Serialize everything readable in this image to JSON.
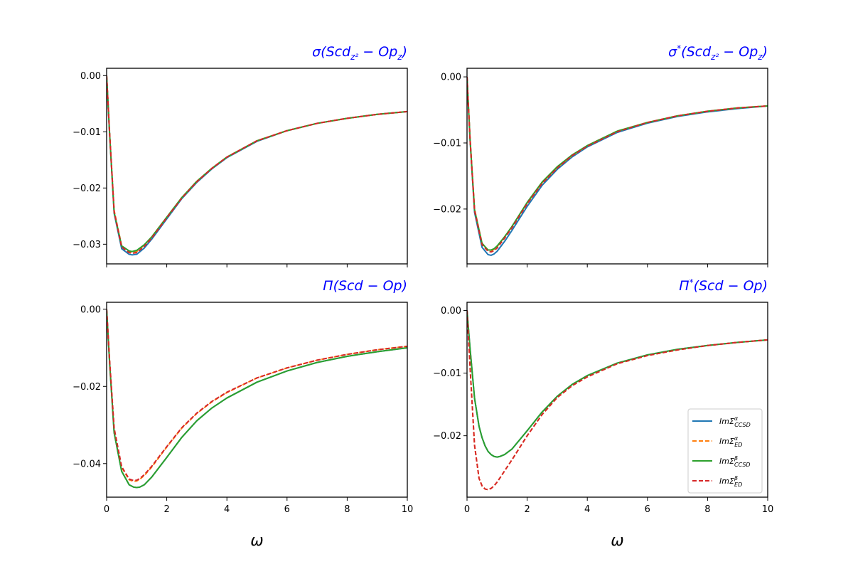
{
  "figure": {
    "title_color": "#0000ff",
    "xlabel": "ω",
    "series_styles": [
      {
        "color": "#1f77b4",
        "dash": "solid"
      },
      {
        "color": "#ff7f0e",
        "dash": "dashed"
      },
      {
        "color": "#2ca02c",
        "dash": "solid"
      },
      {
        "color": "#d62728",
        "dash": "dashed"
      }
    ],
    "legend": {
      "placement": "lower-right of bottom-right panel",
      "entries": [
        {
          "base": "ImΣ",
          "sup": "α",
          "sub": "CCSD"
        },
        {
          "base": "ImΣ",
          "sup": "α",
          "sub": "ED"
        },
        {
          "base": "ImΣ",
          "sup": "β",
          "sub": "CCSD"
        },
        {
          "base": "ImΣ",
          "sup": "β",
          "sub": "ED"
        }
      ]
    }
  },
  "chart_data": [
    {
      "type": "line",
      "title_parts": [
        {
          "t": "σ",
          "s": "n"
        },
        {
          "t": "(",
          "s": "n"
        },
        {
          "t": "Scd",
          "s": "n"
        },
        {
          "t": "z²",
          "s": "sub"
        },
        {
          "t": " − ",
          "s": "n"
        },
        {
          "t": "Op",
          "s": "n"
        },
        {
          "t": "z",
          "s": "sub"
        },
        {
          "t": ")",
          "s": "n"
        }
      ],
      "xlim": [
        0,
        10
      ],
      "ylim": [
        -0.0335,
        0.0013
      ],
      "xticks": [
        0,
        2,
        4,
        6,
        8,
        10
      ],
      "xtick_labels": [
        "0",
        "2",
        "4",
        "6",
        "8",
        "10"
      ],
      "show_xticklabels": false,
      "yticks": [
        0.0,
        -0.01,
        -0.02,
        -0.03
      ],
      "ytick_labels": [
        "0.00",
        "−0.01",
        "−0.02",
        "−0.03"
      ],
      "x": [
        0,
        0.1,
        0.25,
        0.5,
        0.75,
        0.85,
        1.0,
        1.25,
        1.5,
        2,
        2.5,
        3,
        3.5,
        4,
        5,
        6,
        7,
        8,
        9,
        10
      ],
      "series": [
        {
          "values": [
            0,
            -0.0105,
            -0.0245,
            -0.0308,
            -0.0318,
            -0.0319,
            -0.0318,
            -0.0307,
            -0.0291,
            -0.0255,
            -0.0219,
            -0.019,
            -0.0166,
            -0.0146,
            -0.0117,
            -0.0098,
            -0.0085,
            -0.0076,
            -0.0069,
            -0.0064
          ]
        },
        {
          "values": [
            0,
            -0.0102,
            -0.024,
            -0.0303,
            -0.0313,
            -0.0314,
            -0.0313,
            -0.0302,
            -0.0287,
            -0.0252,
            -0.0217,
            -0.0188,
            -0.0165,
            -0.0145,
            -0.0116,
            -0.0098,
            -0.0085,
            -0.0076,
            -0.0069,
            -0.0064
          ]
        },
        {
          "values": [
            0,
            -0.0104,
            -0.0243,
            -0.0303,
            -0.0312,
            -0.0313,
            -0.0311,
            -0.0301,
            -0.0287,
            -0.0252,
            -0.0217,
            -0.0188,
            -0.0165,
            -0.0145,
            -0.0116,
            -0.0098,
            -0.0085,
            -0.0076,
            -0.0069,
            -0.0064
          ]
        },
        {
          "values": [
            0,
            -0.0103,
            -0.0242,
            -0.0305,
            -0.0315,
            -0.0316,
            -0.0315,
            -0.0304,
            -0.0289,
            -0.0253,
            -0.0218,
            -0.0189,
            -0.0165,
            -0.0145,
            -0.0116,
            -0.0098,
            -0.0085,
            -0.0076,
            -0.0069,
            -0.0064
          ]
        }
      ]
    },
    {
      "type": "line",
      "title_parts": [
        {
          "t": "σ",
          "s": "n"
        },
        {
          "t": "*",
          "s": "sup"
        },
        {
          "t": "(",
          "s": "n"
        },
        {
          "t": "Scd",
          "s": "n"
        },
        {
          "t": "z²",
          "s": "sub"
        },
        {
          "t": " − ",
          "s": "n"
        },
        {
          "t": "Op",
          "s": "n"
        },
        {
          "t": "z",
          "s": "sub"
        },
        {
          "t": ")",
          "s": "n"
        }
      ],
      "xlim": [
        0,
        10
      ],
      "ylim": [
        -0.0283,
        0.0013
      ],
      "xticks": [
        0,
        2,
        4,
        6,
        8,
        10
      ],
      "xtick_labels": [
        "0",
        "2",
        "4",
        "6",
        "8",
        "10"
      ],
      "show_xticklabels": false,
      "yticks": [
        0.0,
        -0.01,
        -0.02
      ],
      "ytick_labels": [
        "0.00",
        "−0.01",
        "−0.02"
      ],
      "x": [
        0,
        0.1,
        0.25,
        0.5,
        0.7,
        0.8,
        0.9,
        1.0,
        1.25,
        1.5,
        2,
        2.5,
        3,
        3.5,
        4,
        5,
        6,
        7,
        8,
        9,
        10
      ],
      "series": [
        {
          "values": [
            0,
            -0.0095,
            -0.0205,
            -0.0258,
            -0.0269,
            -0.027,
            -0.0268,
            -0.0264,
            -0.0249,
            -0.0232,
            -0.0196,
            -0.0164,
            -0.014,
            -0.0121,
            -0.0106,
            -0.0084,
            -0.007,
            -0.006,
            -0.0053,
            -0.0048,
            -0.0044
          ]
        },
        {
          "values": [
            0,
            -0.0093,
            -0.02,
            -0.0252,
            -0.0262,
            -0.0263,
            -0.0261,
            -0.0257,
            -0.0242,
            -0.0226,
            -0.0191,
            -0.016,
            -0.0137,
            -0.0119,
            -0.0104,
            -0.0082,
            -0.0069,
            -0.0059,
            -0.0052,
            -0.0047,
            -0.0044
          ]
        },
        {
          "values": [
            0,
            -0.0093,
            -0.0201,
            -0.0252,
            -0.0262,
            -0.0262,
            -0.026,
            -0.0256,
            -0.0242,
            -0.0226,
            -0.019,
            -0.0159,
            -0.0136,
            -0.0118,
            -0.0104,
            -0.0082,
            -0.0069,
            -0.0059,
            -0.0052,
            -0.0047,
            -0.0044
          ]
        },
        {
          "values": [
            0,
            -0.0094,
            -0.0202,
            -0.0254,
            -0.0264,
            -0.0265,
            -0.0263,
            -0.0259,
            -0.0244,
            -0.0228,
            -0.0192,
            -0.0161,
            -0.0138,
            -0.0119,
            -0.0105,
            -0.0083,
            -0.0069,
            -0.0059,
            -0.0052,
            -0.0047,
            -0.0044
          ]
        }
      ]
    },
    {
      "type": "line",
      "title_parts": [
        {
          "t": "Π",
          "s": "n"
        },
        {
          "t": "(",
          "s": "n"
        },
        {
          "t": "Scd",
          "s": "n"
        },
        {
          "t": " − ",
          "s": "n"
        },
        {
          "t": "Op",
          "s": "n"
        },
        {
          "t": ")",
          "s": "n"
        }
      ],
      "xlim": [
        0,
        10
      ],
      "ylim": [
        -0.0487,
        0.0018
      ],
      "xticks": [
        0,
        2,
        4,
        6,
        8,
        10
      ],
      "xtick_labels": [
        "0",
        "2",
        "4",
        "6",
        "8",
        "10"
      ],
      "show_xticklabels": true,
      "yticks": [
        0.0,
        -0.02,
        -0.04
      ],
      "ytick_labels": [
        "0.00",
        "−0.02",
        "−0.04"
      ],
      "x": [
        0,
        0.1,
        0.25,
        0.5,
        0.75,
        0.9,
        1.0,
        1.1,
        1.25,
        1.5,
        2,
        2.5,
        3,
        3.5,
        4,
        5,
        6,
        7,
        8,
        9,
        10
      ],
      "series": [
        {
          "values": [
            0,
            -0.014,
            -0.032,
            -0.042,
            -0.0455,
            -0.0461,
            -0.0462,
            -0.0461,
            -0.0455,
            -0.0435,
            -0.0384,
            -0.0332,
            -0.0289,
            -0.0256,
            -0.023,
            -0.0189,
            -0.016,
            -0.0138,
            -0.0122,
            -0.011,
            -0.01
          ]
        },
        {
          "values": [
            0,
            -0.0135,
            -0.031,
            -0.041,
            -0.0442,
            -0.0446,
            -0.0445,
            -0.0441,
            -0.0431,
            -0.0409,
            -0.0357,
            -0.0308,
            -0.027,
            -0.024,
            -0.0216,
            -0.0178,
            -0.0152,
            -0.0132,
            -0.0117,
            -0.0105,
            -0.0096
          ]
        },
        {
          "values": [
            0,
            -0.014,
            -0.032,
            -0.042,
            -0.0455,
            -0.0461,
            -0.0462,
            -0.0461,
            -0.0455,
            -0.0435,
            -0.0384,
            -0.0332,
            -0.0289,
            -0.0256,
            -0.023,
            -0.0189,
            -0.016,
            -0.0138,
            -0.0122,
            -0.011,
            -0.01
          ]
        },
        {
          "values": [
            0,
            -0.0133,
            -0.0308,
            -0.0408,
            -0.044,
            -0.0444,
            -0.0443,
            -0.0439,
            -0.0429,
            -0.0407,
            -0.0356,
            -0.0307,
            -0.0269,
            -0.0239,
            -0.0215,
            -0.0178,
            -0.0152,
            -0.0132,
            -0.0117,
            -0.0105,
            -0.0096
          ]
        }
      ]
    },
    {
      "type": "line",
      "title_parts": [
        {
          "t": "Π",
          "s": "n"
        },
        {
          "t": "*",
          "s": "sup"
        },
        {
          "t": "(",
          "s": "n"
        },
        {
          "t": "Scd",
          "s": "n"
        },
        {
          "t": " − ",
          "s": "n"
        },
        {
          "t": "Op",
          "s": "n"
        },
        {
          "t": ")",
          "s": "n"
        }
      ],
      "xlim": [
        0,
        10
      ],
      "ylim": [
        -0.0298,
        0.0013
      ],
      "xticks": [
        0,
        2,
        4,
        6,
        8,
        10
      ],
      "xtick_labels": [
        "0",
        "2",
        "4",
        "6",
        "8",
        "10"
      ],
      "show_xticklabels": true,
      "yticks": [
        0.0,
        -0.01,
        -0.02
      ],
      "ytick_labels": [
        "0.00",
        "−0.01",
        "−0.02"
      ],
      "x": [
        0,
        0.1,
        0.25,
        0.4,
        0.5,
        0.6,
        0.7,
        0.8,
        0.9,
        1.0,
        1.1,
        1.25,
        1.5,
        2,
        2.5,
        3,
        3.5,
        4,
        5,
        6,
        7,
        8,
        9,
        10
      ],
      "series": [
        {
          "values": [
            0,
            -0.006,
            -0.014,
            -0.0185,
            -0.0203,
            -0.0216,
            -0.0225,
            -0.023,
            -0.0233,
            -0.0234,
            -0.0233,
            -0.023,
            -0.0221,
            -0.0192,
            -0.0162,
            -0.0137,
            -0.0118,
            -0.0104,
            -0.0084,
            -0.0071,
            -0.0062,
            -0.0056,
            -0.0051,
            -0.0047
          ]
        },
        {
          "values": [
            0,
            -0.009,
            -0.0215,
            -0.0268,
            -0.028,
            -0.0285,
            -0.0286,
            -0.0284,
            -0.028,
            -0.0274,
            -0.0267,
            -0.0256,
            -0.0238,
            -0.02,
            -0.0166,
            -0.0139,
            -0.012,
            -0.0106,
            -0.0085,
            -0.0072,
            -0.0063,
            -0.0056,
            -0.0051,
            -0.0047
          ]
        },
        {
          "values": [
            0,
            -0.006,
            -0.014,
            -0.0185,
            -0.0203,
            -0.0216,
            -0.0225,
            -0.023,
            -0.0233,
            -0.0234,
            -0.0233,
            -0.023,
            -0.0221,
            -0.0192,
            -0.0162,
            -0.0137,
            -0.0118,
            -0.0104,
            -0.0084,
            -0.0071,
            -0.0062,
            -0.0056,
            -0.0051,
            -0.0047
          ]
        },
        {
          "values": [
            0,
            -0.009,
            -0.0215,
            -0.0268,
            -0.028,
            -0.0285,
            -0.0286,
            -0.0284,
            -0.028,
            -0.0274,
            -0.0267,
            -0.0256,
            -0.0238,
            -0.02,
            -0.0166,
            -0.0139,
            -0.012,
            -0.0106,
            -0.0085,
            -0.0072,
            -0.0063,
            -0.0056,
            -0.0051,
            -0.0047
          ]
        }
      ]
    }
  ]
}
